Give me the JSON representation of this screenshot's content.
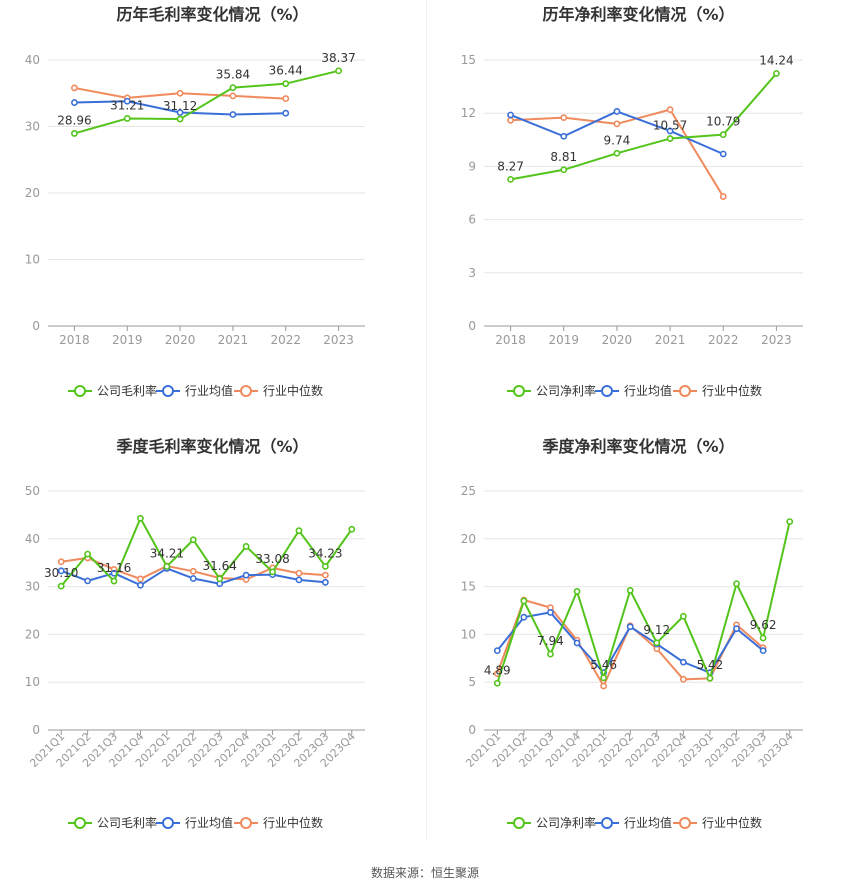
{
  "colors": {
    "company": "#52c41a",
    "industry_avg": "#3a6fd8",
    "industry_median": "#f08a5d",
    "grid": "#e6e6e6",
    "axis": "#999999",
    "tick_text": "#999999",
    "title_text": "#333333",
    "label_text": "#333333"
  },
  "footer": "数据来源：恒生聚源",
  "chart_data": [
    {
      "type": "line",
      "title": "历年毛利率变化情况（%）",
      "categories": [
        "2018",
        "2019",
        "2020",
        "2021",
        "2022",
        "2023"
      ],
      "ylim": [
        0,
        40
      ],
      "yticks": [
        0,
        10,
        20,
        30,
        40
      ],
      "legend_position": "bottom",
      "series": [
        {
          "name": "公司毛利率",
          "color_key": "company",
          "values": [
            28.96,
            31.21,
            31.12,
            35.84,
            36.44,
            38.37
          ],
          "labels": [
            "28.96",
            "31.21",
            "31.12",
            "35.84",
            "36.44",
            "38.37"
          ]
        },
        {
          "name": "行业均值",
          "color_key": "industry_avg",
          "values": [
            33.6,
            33.8,
            32.1,
            31.8,
            32.0,
            null
          ]
        },
        {
          "name": "行业中位数",
          "color_key": "industry_median",
          "values": [
            35.8,
            34.3,
            35.0,
            34.6,
            34.2,
            null
          ]
        }
      ]
    },
    {
      "type": "line",
      "title": "历年净利率变化情况（%）",
      "categories": [
        "2018",
        "2019",
        "2020",
        "2021",
        "2022",
        "2023"
      ],
      "ylim": [
        0,
        15
      ],
      "yticks": [
        0,
        3,
        6,
        9,
        12,
        15
      ],
      "legend_position": "bottom",
      "series": [
        {
          "name": "公司净利率",
          "color_key": "company",
          "values": [
            8.27,
            8.81,
            9.74,
            10.57,
            10.79,
            14.24
          ],
          "labels": [
            "8.27",
            "8.81",
            "9.74",
            "10.57",
            "10.79",
            "14.24"
          ]
        },
        {
          "name": "行业均值",
          "color_key": "industry_avg",
          "values": [
            11.9,
            10.7,
            12.1,
            11.0,
            9.7,
            null
          ]
        },
        {
          "name": "行业中位数",
          "color_key": "industry_median",
          "values": [
            11.6,
            11.75,
            11.4,
            12.2,
            7.3,
            null
          ]
        }
      ]
    },
    {
      "type": "line",
      "title": "季度毛利率变化情况（%）",
      "categories": [
        "2021Q1",
        "2021Q2",
        "2021Q3",
        "2021Q4",
        "2022Q1",
        "2022Q2",
        "2022Q3",
        "2022Q4",
        "2023Q1",
        "2023Q2",
        "2023Q3",
        "2023Q4"
      ],
      "ylim": [
        0,
        50
      ],
      "yticks": [
        0,
        10,
        20,
        30,
        40,
        50
      ],
      "legend_position": "bottom",
      "series": [
        {
          "name": "公司毛利率",
          "color_key": "company",
          "values": [
            30.1,
            36.8,
            31.16,
            44.3,
            34.21,
            39.8,
            31.64,
            38.4,
            33.08,
            41.7,
            34.23,
            42.0
          ],
          "labels": [
            "30.10",
            "",
            "31.16",
            "",
            "34.21",
            "",
            "31.64",
            "",
            "33.08",
            "",
            "34.23",
            ""
          ]
        },
        {
          "name": "行业均值",
          "color_key": "industry_avg",
          "values": [
            33.3,
            31.2,
            32.8,
            30.3,
            33.8,
            31.7,
            30.6,
            32.4,
            32.5,
            31.4,
            30.9,
            null
          ]
        },
        {
          "name": "行业中位数",
          "color_key": "industry_median",
          "values": [
            35.2,
            36.0,
            33.6,
            31.6,
            34.3,
            33.2,
            31.8,
            31.5,
            33.9,
            32.8,
            32.4,
            null
          ]
        }
      ]
    },
    {
      "type": "line",
      "title": "季度净利率变化情况（%）",
      "categories": [
        "2021Q1",
        "2021Q2",
        "2021Q3",
        "2021Q4",
        "2022Q1",
        "2022Q2",
        "2022Q3",
        "2022Q4",
        "2023Q1",
        "2023Q2",
        "2023Q3",
        "2023Q4"
      ],
      "ylim": [
        0,
        25
      ],
      "yticks": [
        0,
        5,
        10,
        15,
        20,
        25
      ],
      "legend_position": "bottom",
      "series": [
        {
          "name": "公司净利率",
          "color_key": "company",
          "values": [
            4.89,
            13.5,
            7.94,
            14.5,
            5.46,
            14.6,
            9.12,
            11.9,
            5.42,
            15.3,
            9.62,
            21.8
          ],
          "labels": [
            "4.89",
            "",
            "7.94",
            "",
            "5.46",
            "",
            "9.12",
            "",
            "5.42",
            "",
            "9.62",
            ""
          ]
        },
        {
          "name": "行业均值",
          "color_key": "industry_avg",
          "values": [
            8.3,
            11.8,
            12.3,
            9.1,
            6.0,
            10.8,
            9.0,
            7.1,
            6.0,
            10.6,
            8.3,
            null
          ]
        },
        {
          "name": "行业中位数",
          "color_key": "industry_median",
          "values": [
            5.9,
            13.6,
            12.8,
            9.4,
            4.6,
            10.9,
            8.5,
            5.3,
            5.4,
            11.0,
            8.6,
            null
          ]
        }
      ]
    }
  ]
}
